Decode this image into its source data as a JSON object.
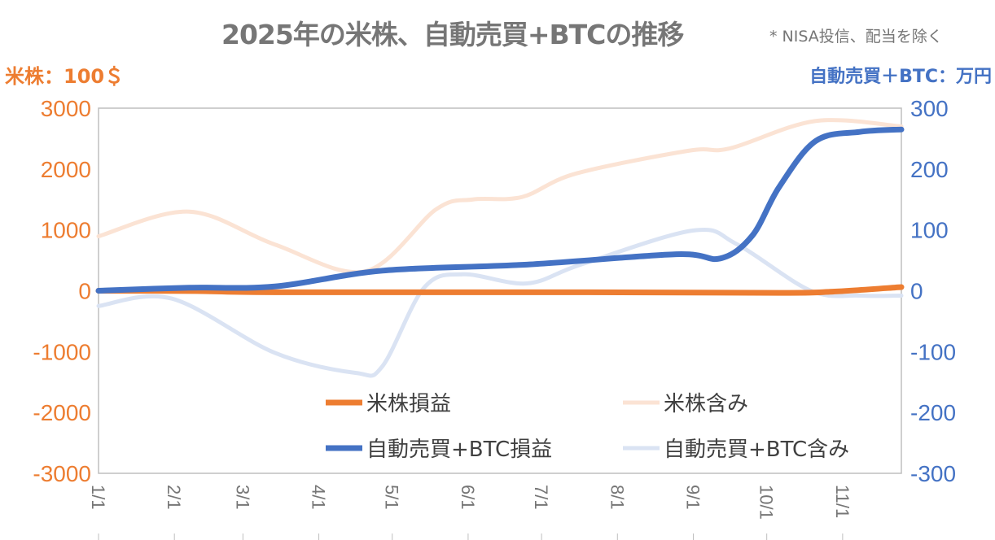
{
  "title": "2025年の米株、自動売買+BTCの推移",
  "note": "* NISA投信、配当を除く",
  "left_unit": "米株：100＄",
  "right_unit": "自動売買＋BTC：万円",
  "colors": {
    "orange": "#ED7D31",
    "orange_light": "#FBE3D4",
    "blue": "#4472C4",
    "blue_light": "#DAE3F3",
    "axis_text": "#767676",
    "left_ticks": "#ED7D31",
    "right_ticks": "#4472C4"
  },
  "chart_data": {
    "type": "line",
    "title": "2025年の米株、自動売買+BTCの推移",
    "x_unit": "day of year 2025 (0 = 1/1)",
    "xlim": [
      0,
      328
    ],
    "x_ticks": [
      {
        "value": 0,
        "label": "1/1"
      },
      {
        "value": 31,
        "label": "2/1"
      },
      {
        "value": 59,
        "label": "3/1"
      },
      {
        "value": 90,
        "label": "4/1"
      },
      {
        "value": 120,
        "label": "5/1"
      },
      {
        "value": 151,
        "label": "6/1"
      },
      {
        "value": 181,
        "label": "7/1"
      },
      {
        "value": 212,
        "label": "8/1"
      },
      {
        "value": 243,
        "label": "9/1"
      },
      {
        "value": 273,
        "label": "10/1"
      },
      {
        "value": 304,
        "label": "11/1"
      }
    ],
    "y_left": {
      "label": "米株：100＄",
      "ylim": [
        -3000,
        3000
      ],
      "ticks": [
        "3000",
        "2000",
        "1000",
        "0",
        "-1000",
        "-2000",
        "-3000"
      ]
    },
    "y_right": {
      "label": "自動売買＋BTC：万円",
      "ylim": [
        -300,
        300
      ],
      "ticks": [
        "300",
        "200",
        "100",
        "0",
        "-100",
        "-200",
        "-300"
      ]
    },
    "legend_position": "inside-bottom",
    "series": [
      {
        "name": "米株含み",
        "axis": "left",
        "color": "#FBE3D4",
        "width": 5,
        "x": [
          0,
          37,
          72,
          109,
          138,
          153,
          173,
          195,
          241,
          258,
          293,
          328
        ],
        "y": [
          895,
          1300,
          760,
          320,
          1340,
          1500,
          1540,
          1925,
          2300,
          2340,
          2790,
          2700
        ]
      },
      {
        "name": "自動売買+BTC含み",
        "axis": "right",
        "color": "#DAE3F3",
        "width": 5,
        "x": [
          0,
          30,
          72,
          105,
          116,
          133,
          149,
          175,
          197,
          243,
          261,
          291,
          311,
          328
        ],
        "y": [
          -25,
          -13,
          -102,
          -135,
          -124,
          5,
          27,
          12,
          43,
          99,
          76,
          0,
          -8,
          -8
        ]
      },
      {
        "name": "米株損益",
        "axis": "left",
        "color": "#ED7D31",
        "width": 7,
        "x": [
          0,
          40,
          72,
          200,
          278,
          300,
          328
        ],
        "y": [
          0,
          -5,
          -25,
          -25,
          -35,
          -15,
          60
        ]
      },
      {
        "name": "自動売買+BTC損益",
        "axis": "right",
        "color": "#4472C4",
        "width": 7,
        "x": [
          0,
          37,
          72,
          116,
          175,
          236,
          254,
          267,
          278,
          293,
          311,
          328
        ],
        "y": [
          0,
          5,
          7,
          33,
          43,
          60,
          53,
          90,
          170,
          246,
          261,
          265
        ]
      }
    ],
    "legend": [
      "米株損益",
      "米株含み",
      "自動売買+BTC損益",
      "自動売買+BTC含み"
    ]
  }
}
